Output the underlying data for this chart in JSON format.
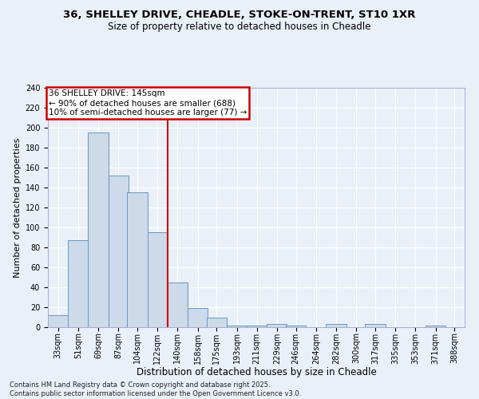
{
  "title1": "36, SHELLEY DRIVE, CHEADLE, STOKE-ON-TRENT, ST10 1XR",
  "title2": "Size of property relative to detached houses in Cheadle",
  "xlabel": "Distribution of detached houses by size in Cheadle",
  "ylabel": "Number of detached properties",
  "footnote": "Contains HM Land Registry data © Crown copyright and database right 2025.\nContains public sector information licensed under the Open Government Licence v3.0.",
  "bins": [
    33,
    51,
    69,
    87,
    104,
    122,
    140,
    158,
    175,
    193,
    211,
    229,
    246,
    264,
    282,
    300,
    317,
    335,
    353,
    371,
    388
  ],
  "counts": [
    12,
    87,
    195,
    152,
    135,
    95,
    45,
    19,
    10,
    2,
    2,
    3,
    2,
    0,
    3,
    0,
    3,
    0,
    0,
    2,
    0
  ],
  "bar_color": "#ccdaea",
  "bar_edge_color": "#6898c0",
  "vline_x": 140,
  "vline_color": "#cc0000",
  "annotation_title": "36 SHELLEY DRIVE: 145sqm",
  "annotation_line1": "← 90% of detached houses are smaller (688)",
  "annotation_line2": "10% of semi-detached houses are larger (77) →",
  "annotation_box_color": "#cc0000",
  "ylim": [
    0,
    240
  ],
  "yticks": [
    0,
    20,
    40,
    60,
    80,
    100,
    120,
    140,
    160,
    180,
    200,
    220,
    240
  ],
  "background_color": "#eaf0f8",
  "grid_color": "#ffffff",
  "title1_fontsize": 9.5,
  "title2_fontsize": 8.5,
  "xlabel_fontsize": 8.5,
  "ylabel_fontsize": 8,
  "tick_fontsize": 7,
  "footnote_fontsize": 6,
  "annot_fontsize": 7.5
}
